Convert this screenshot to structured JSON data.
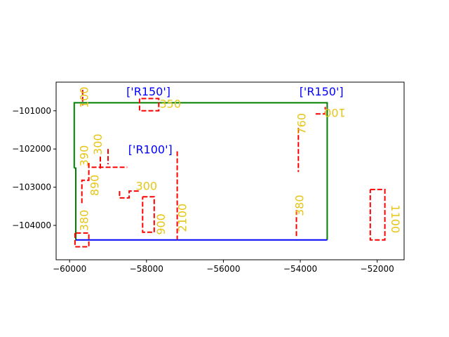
{
  "chart_data": {
    "type": "line",
    "title": "",
    "xlabel": "",
    "ylabel": "",
    "xlim": [
      -60350,
      -51300
    ],
    "ylim": [
      -104900,
      -100250
    ],
    "grid": false,
    "xticks": [
      {
        "value": -60000,
        "label": "−60000"
      },
      {
        "value": -58000,
        "label": "−58000"
      },
      {
        "value": -56000,
        "label": "−56000"
      },
      {
        "value": -54000,
        "label": "−54000"
      },
      {
        "value": -52000,
        "label": "−52000"
      }
    ],
    "yticks": [
      {
        "value": -101000,
        "label": "−101000"
      },
      {
        "value": -102000,
        "label": "−102000"
      },
      {
        "value": -103000,
        "label": "−103000"
      },
      {
        "value": -104000,
        "label": "−104000"
      }
    ],
    "series": [
      {
        "color": "#008000",
        "style": "solid",
        "points": [
          [
            -59880,
            -102500
          ],
          [
            -59880,
            -100790
          ],
          [
            -53300,
            -100790
          ],
          [
            -53300,
            -104380
          ]
        ]
      },
      {
        "color": "#008000",
        "style": "solid",
        "points": [
          [
            -59880,
            -102500
          ],
          [
            -59840,
            -102500
          ],
          [
            -59840,
            -104380
          ]
        ]
      },
      {
        "color": "#0000ff",
        "style": "solid",
        "points": [
          [
            -59840,
            -104380
          ],
          [
            -53300,
            -104380
          ]
        ]
      },
      {
        "color": "#ff0000",
        "style": "dashed",
        "points": [
          [
            -59660,
            -100450
          ],
          [
            -59660,
            -100860
          ]
        ]
      },
      {
        "color": "#ff0000",
        "style": "dashed",
        "points": [
          [
            -58180,
            -100680
          ],
          [
            -58180,
            -101000
          ],
          [
            -57680,
            -101000
          ],
          [
            -57680,
            -100680
          ],
          [
            -58180,
            -100680
          ]
        ]
      },
      {
        "color": "#ff0000",
        "style": "dashed",
        "points": [
          [
            -59500,
            -102370
          ],
          [
            -59500,
            -102480
          ],
          [
            -58500,
            -102480
          ]
        ]
      },
      {
        "color": "#ff0000",
        "style": "dashed",
        "points": [
          [
            -59200,
            -102200
          ],
          [
            -59200,
            -102520
          ]
        ]
      },
      {
        "color": "#ff0000",
        "style": "dashed",
        "points": [
          [
            -59000,
            -102000
          ],
          [
            -59000,
            -102400
          ]
        ]
      },
      {
        "color": "#ff0000",
        "style": "dashed",
        "points": [
          [
            -59500,
            -102370
          ],
          [
            -59500,
            -102820
          ],
          [
            -59680,
            -102820
          ],
          [
            -59680,
            -103420
          ]
        ]
      },
      {
        "color": "#ff0000",
        "style": "dashed",
        "points": [
          [
            -58700,
            -103100
          ],
          [
            -58700,
            -103280
          ],
          [
            -58450,
            -103280
          ],
          [
            -58450,
            -103100
          ],
          [
            -58150,
            -103100
          ]
        ]
      },
      {
        "color": "#ff0000",
        "style": "dashed",
        "points": [
          [
            -58100,
            -103250
          ],
          [
            -57800,
            -103250
          ],
          [
            -57800,
            -104180
          ],
          [
            -58100,
            -104180
          ],
          [
            -58100,
            -103250
          ]
        ]
      },
      {
        "color": "#ff0000",
        "style": "dashed",
        "points": [
          [
            -57200,
            -102060
          ],
          [
            -57200,
            -104360
          ]
        ]
      },
      {
        "color": "#ff0000",
        "style": "dashed",
        "points": [
          [
            -59860,
            -104200
          ],
          [
            -59860,
            -104560
          ],
          [
            -59500,
            -104560
          ],
          [
            -59500,
            -104200
          ],
          [
            -59860,
            -104200
          ]
        ]
      },
      {
        "color": "#ff0000",
        "style": "dashed",
        "points": [
          [
            -54050,
            -101450
          ],
          [
            -54050,
            -102600
          ]
        ]
      },
      {
        "color": "#ff0000",
        "style": "dashed",
        "points": [
          [
            -54100,
            -103600
          ],
          [
            -54100,
            -104300
          ]
        ]
      },
      {
        "color": "#ff0000",
        "style": "dashed",
        "points": [
          [
            -53600,
            -101080
          ],
          [
            -53350,
            -101080
          ],
          [
            -53350,
            -100900
          ]
        ]
      },
      {
        "color": "#ff0000",
        "style": "dashed",
        "points": [
          [
            -52180,
            -103060
          ],
          [
            -51800,
            -103060
          ],
          [
            -51800,
            -104380
          ],
          [
            -52180,
            -104380
          ],
          [
            -52180,
            -103060
          ]
        ]
      }
    ],
    "annotations": [
      {
        "text": "['R150']",
        "x": -57950,
        "y": -100520,
        "color": "#0000ff",
        "rotation": 0
      },
      {
        "text": "['R150']",
        "x": -53450,
        "y": -100520,
        "color": "#0000ff",
        "rotation": 0
      },
      {
        "text": "['R100']",
        "x": -57900,
        "y": -102030,
        "color": "#0000ff",
        "rotation": 0
      },
      {
        "text": "100",
        "x": -59600,
        "y": -100650,
        "color": "#e6c619",
        "rotation": -90
      },
      {
        "text": "350",
        "x": -57380,
        "y": -100840,
        "color": "#e6c619",
        "rotation": 0
      },
      {
        "text": "300",
        "x": -59250,
        "y": -101880,
        "color": "#e6c619",
        "rotation": -90
      },
      {
        "text": "390",
        "x": -59600,
        "y": -102180,
        "color": "#e6c619",
        "rotation": -90
      },
      {
        "text": "890",
        "x": -59330,
        "y": -102950,
        "color": "#e6c619",
        "rotation": -90
      },
      {
        "text": "300",
        "x": -58000,
        "y": -102990,
        "color": "#e6c619",
        "rotation": 0
      },
      {
        "text": "380",
        "x": -59600,
        "y": -103870,
        "color": "#e6c619",
        "rotation": -90
      },
      {
        "text": "900",
        "x": -57600,
        "y": -103970,
        "color": "#e6c619",
        "rotation": -90
      },
      {
        "text": "2100",
        "x": -57050,
        "y": -103800,
        "color": "#e6c619",
        "rotation": -90
      },
      {
        "text": "760",
        "x": -53950,
        "y": -101340,
        "color": "#e6c619",
        "rotation": -90
      },
      {
        "text": "380",
        "x": -54000,
        "y": -103480,
        "color": "#e6c619",
        "rotation": -90
      },
      {
        "text": "100",
        "x": -53100,
        "y": -101030,
        "color": "#e6c619",
        "rotation": 180
      },
      {
        "text": "1100",
        "x": -51550,
        "y": -103830,
        "color": "#e6c619",
        "rotation": 90
      }
    ]
  }
}
